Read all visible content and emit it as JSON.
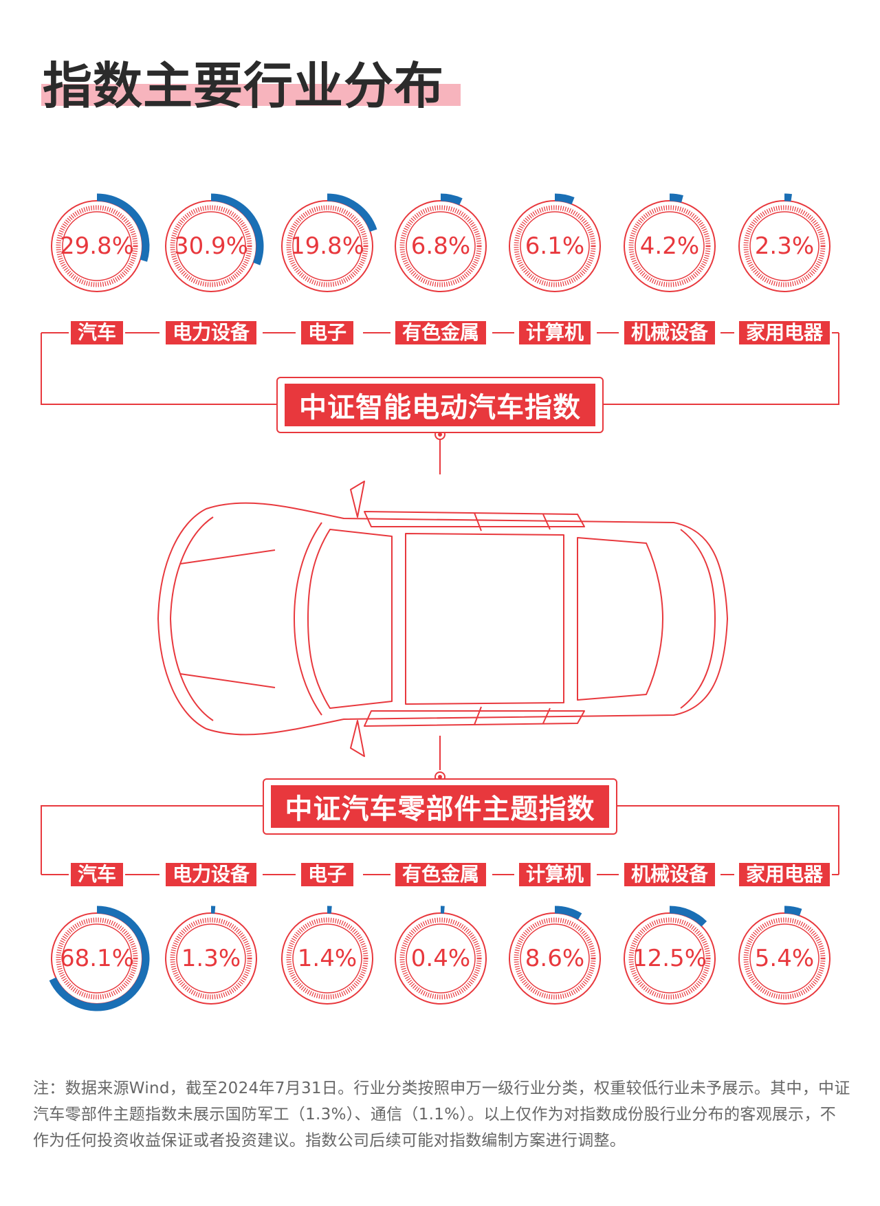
{
  "title": "指数主要行业分布",
  "categories": [
    "汽车",
    "电力设备",
    "电子",
    "有色金属",
    "计算机",
    "机械设备",
    "家用电器"
  ],
  "index_top": "中证智能电动汽车指数",
  "index_bottom": "中证汽车零部件主题指数",
  "colors": {
    "accent_red": "#e8383d",
    "ring_blue": "#1a6fb5",
    "title_underline": "#f7b4bd"
  },
  "chart_data": [
    {
      "type": "pie",
      "name": "中证智能电动汽车指数",
      "categories": [
        "汽车",
        "电力设备",
        "电子",
        "有色金属",
        "计算机",
        "机械设备",
        "家用电器"
      ],
      "values": [
        29.8,
        30.9,
        19.8,
        6.8,
        6.1,
        4.2,
        2.3
      ],
      "labels": [
        "29.8%",
        "30.9%",
        "19.8%",
        "6.8%",
        "6.1%",
        "4.2%",
        "2.3%"
      ]
    },
    {
      "type": "pie",
      "name": "中证汽车零部件主题指数",
      "categories": [
        "汽车",
        "电力设备",
        "电子",
        "有色金属",
        "计算机",
        "机械设备",
        "家用电器"
      ],
      "values": [
        68.1,
        1.3,
        1.4,
        0.4,
        8.6,
        12.5,
        5.4
      ],
      "labels": [
        "68.1%",
        "1.3%",
        "1.4%",
        "0.4%",
        "8.6%",
        "12.5%",
        "5.4%"
      ]
    }
  ],
  "note": "注：数据来源Wind，截至2024年7月31日。行业分类按照申万一级行业分类，权重较低行业未予展示。其中，中证汽车零部件主题指数未展示国防军工（1.3%）、通信（1.1%）。以上仅作为对指数成份股行业分布的客观展示，不作为任何投资收益保证或者投资建议。指数公司后续可能对指数编制方案进行调整。"
}
